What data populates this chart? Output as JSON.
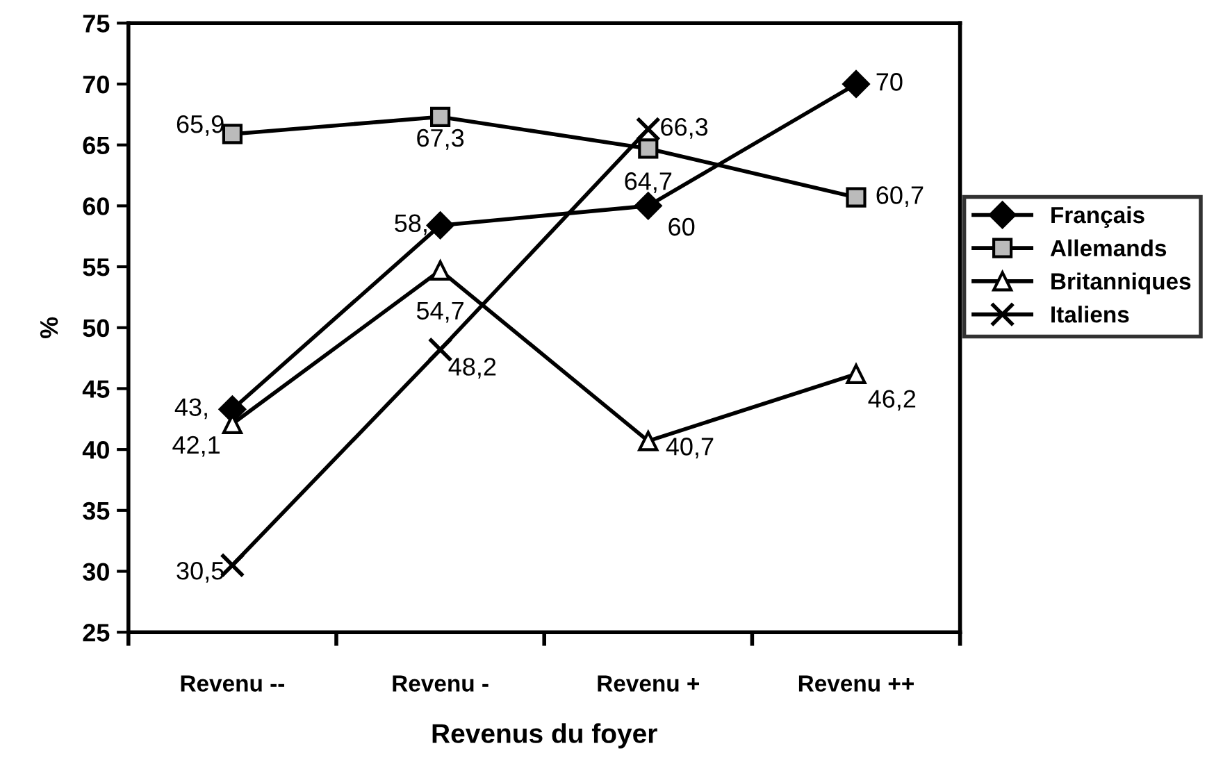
{
  "chart_data": {
    "type": "line",
    "xlabel": "Revenus du foyer",
    "ylabel": "%",
    "categories": [
      "Revenu --",
      "Revenu -",
      "Revenu +",
      "Revenu ++"
    ],
    "ylim": [
      25,
      75
    ],
    "yticks": [
      25,
      30,
      35,
      40,
      45,
      50,
      55,
      60,
      65,
      70,
      75
    ],
    "grid": false,
    "legend": "right",
    "series": [
      {
        "name": "Français",
        "color": "#000000",
        "marker": "diamond",
        "values": [
          43.3,
          58.4,
          60,
          70
        ],
        "value_labels": [
          "43,",
          "58,",
          "60",
          "70"
        ]
      },
      {
        "name": "Allemands",
        "color": "#000000",
        "marker": "square",
        "values": [
          65.9,
          67.3,
          64.7,
          60.7
        ],
        "value_labels": [
          "65,9",
          "67,3",
          "64,7",
          "60,7"
        ]
      },
      {
        "name": "Britanniques",
        "color": "#000000",
        "marker": "triangle",
        "values": [
          42.1,
          54.7,
          40.7,
          46.2
        ],
        "value_labels": [
          "42,1",
          "54,7",
          "40,7",
          "46,2"
        ]
      },
      {
        "name": "Italiens",
        "color": "#000000",
        "marker": "cross",
        "values": [
          30.5,
          48.2,
          66.3,
          null
        ],
        "value_labels": [
          "30,5",
          "48,2",
          "66,3",
          null
        ]
      }
    ]
  }
}
